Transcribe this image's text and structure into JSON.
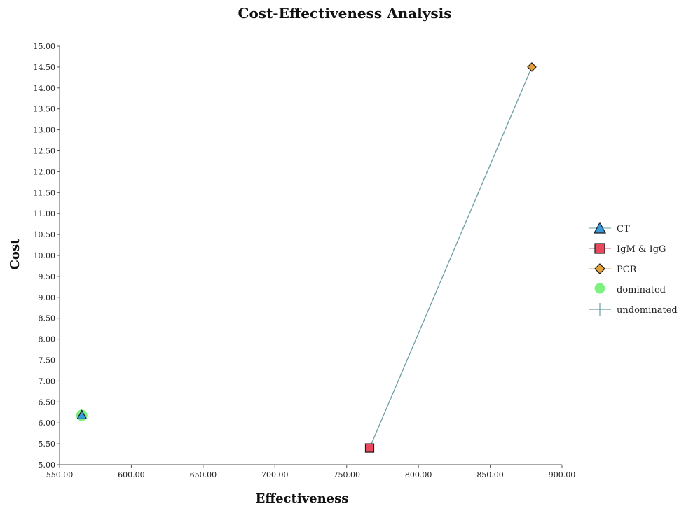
{
  "chart_data": {
    "type": "scatter",
    "title": "Cost-Effectiveness Analysis",
    "xlabel": "Effectiveness",
    "ylabel": "Cost",
    "xlim": [
      550,
      900
    ],
    "ylim": [
      5,
      15
    ],
    "x_ticks": [
      "550.00",
      "600.00",
      "650.00",
      "700.00",
      "750.00",
      "800.00",
      "850.00",
      "900.00"
    ],
    "y_ticks": [
      "5.00",
      "5.50",
      "6.00",
      "6.50",
      "7.00",
      "7.50",
      "8.00",
      "8.50",
      "9.00",
      "9.50",
      "10.00",
      "10.50",
      "11.00",
      "11.50",
      "12.00",
      "12.50",
      "13.00",
      "13.50",
      "14.00",
      "14.50",
      "15.00"
    ],
    "grid": false,
    "legend_position": "right",
    "series": [
      {
        "name": "CT",
        "marker": "triangle",
        "color": "#3a9ad9",
        "x": 565.5,
        "y": 6.18
      },
      {
        "name": "IgM & IgG",
        "marker": "square",
        "color": "#e8495f",
        "x": 766,
        "y": 5.4
      },
      {
        "name": "PCR",
        "marker": "diamond",
        "color": "#e0a03a",
        "x": 879,
        "y": 14.5
      }
    ],
    "dominated": {
      "name": "dominated",
      "color": "#7ef07e",
      "points": [
        {
          "x": 565.5,
          "y": 6.18
        }
      ]
    },
    "undominated": {
      "name": "undominated",
      "color": "#6b9ea3",
      "points": [
        {
          "x": 766,
          "y": 5.4
        },
        {
          "x": 879,
          "y": 14.5
        }
      ]
    }
  }
}
